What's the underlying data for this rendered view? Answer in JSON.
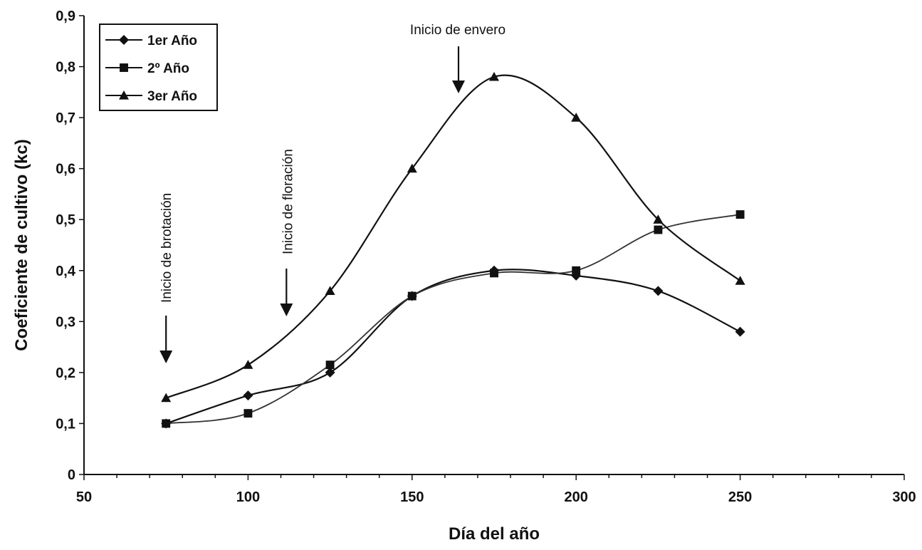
{
  "chart_data": {
    "type": "line",
    "title": "",
    "xlabel": "Día del año",
    "ylabel": "Coeficiente de cultivo (kc)",
    "xlim": [
      50,
      300
    ],
    "ylim": [
      0,
      0.9
    ],
    "x_ticks": [
      "50",
      "100",
      "150",
      "200",
      "250",
      "300"
    ],
    "y_ticks": [
      "0",
      "0,1",
      "0,2",
      "0,3",
      "0,4",
      "0,5",
      "0,6",
      "0,7",
      "0,8",
      "0,9"
    ],
    "grid": false,
    "legend_position": "top-left",
    "x": [
      75,
      100,
      125,
      150,
      175,
      200,
      225,
      250
    ],
    "series": [
      {
        "name": "1er Año",
        "marker": "diamond",
        "values": [
          0.1,
          0.155,
          0.2,
          0.35,
          0.4,
          0.39,
          0.36,
          0.28
        ]
      },
      {
        "name": "2º Año",
        "marker": "square",
        "values": [
          0.1,
          0.12,
          0.215,
          0.35,
          0.395,
          0.4,
          0.48,
          0.51
        ]
      },
      {
        "name": "3er Año",
        "marker": "triangle",
        "values": [
          0.15,
          0.215,
          0.36,
          0.6,
          0.78,
          0.7,
          0.5,
          0.38
        ]
      }
    ],
    "annotations": [
      {
        "text": "Inicio de brotación",
        "x": 75,
        "orientation": "vertical"
      },
      {
        "text": "Inicio de floración",
        "x": 113,
        "orientation": "vertical"
      },
      {
        "text": "Inicio de envero",
        "x": 165,
        "orientation": "horizontal"
      }
    ]
  }
}
